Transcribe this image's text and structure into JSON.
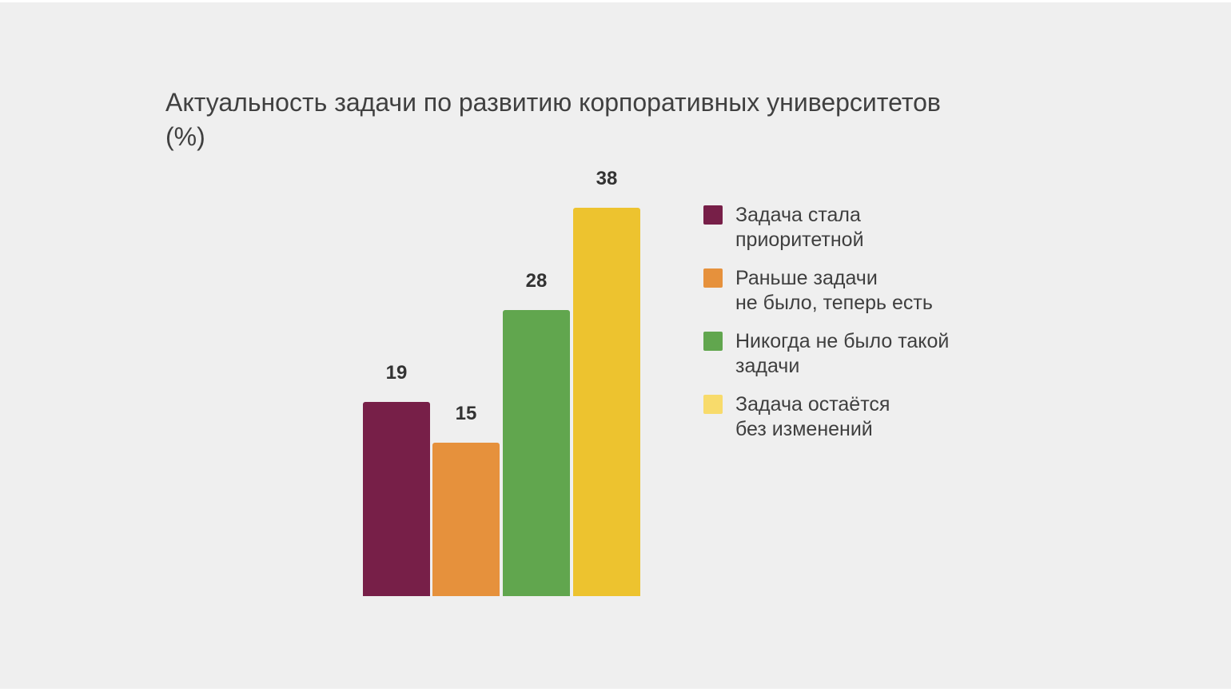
{
  "header": {
    "title_line1": "Актуальность задачи по развитию корпоративных университетов",
    "title_line2": "(%)"
  },
  "chart_data": {
    "type": "bar",
    "title": "Актуальность задачи по развитию корпоративных университетов (%)",
    "unit": "%",
    "categories": [
      "Задача стала приоритетной",
      "Раньше задачи не было, теперь есть",
      "Никогда не было такой задачи",
      "Задача остаётся без изменений"
    ],
    "values": [
      19,
      15,
      28,
      38
    ],
    "bar_colors": [
      "#771f48",
      "#e6913c",
      "#61a64e",
      "#edc32f"
    ],
    "data_labels": [
      "19",
      "15",
      "28",
      "38"
    ],
    "xlabel": "",
    "ylabel": "",
    "ylim": [
      0,
      40
    ],
    "grid": false,
    "axes_visible": false,
    "legend_position": "right"
  },
  "legend": {
    "items": [
      {
        "line1": "Задача стала",
        "line2": "приоритетной",
        "swatch_color": "#771f48"
      },
      {
        "line1": "Раньше задачи",
        "line2": "не было, теперь есть",
        "swatch_color": "#e6913c"
      },
      {
        "line1": "Никогда не было такой",
        "line2": "задачи",
        "swatch_color": "#61a64e"
      },
      {
        "line1": "Задача остаётся",
        "line2": "без изменений",
        "swatch_color": "#f8db6b"
      }
    ]
  },
  "colors": {
    "background": "#efefef",
    "title_text": "#404040",
    "value_label_text": "#333333",
    "legend_text": "#3f3f3f"
  }
}
